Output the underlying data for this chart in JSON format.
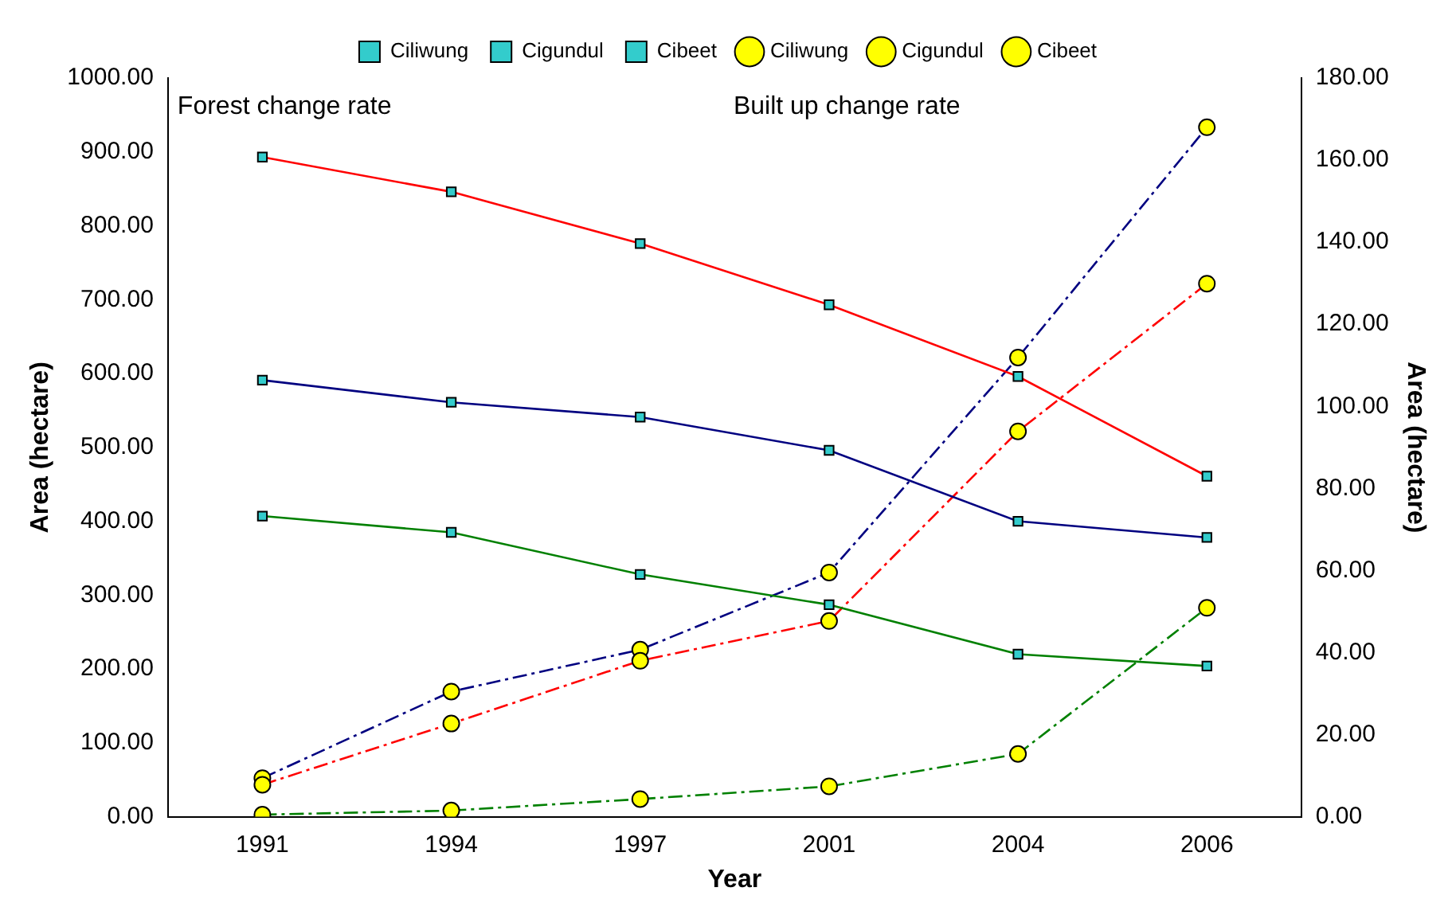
{
  "chart_data": {
    "type": "line",
    "xlabel": "Year",
    "ylabel": "Area (hectare)",
    "y2label": "Area (hectare)",
    "categories": [
      "1991",
      "1994",
      "1997",
      "2001",
      "2004",
      "2006"
    ],
    "series": [
      {
        "name": "Ciliwung",
        "color": "#ff0000",
        "marker": "square",
        "line_style": "solid",
        "values": [
          893,
          846,
          776,
          693,
          596,
          461
        ]
      },
      {
        "name": "Cigundul",
        "color": "#000080",
        "marker": "square",
        "line_style": "solid",
        "values": [
          591,
          561,
          541,
          496,
          400,
          378
        ]
      },
      {
        "name": "Cibeet",
        "color": "#008000",
        "marker": "square",
        "line_style": "solid",
        "values": [
          407,
          385,
          328,
          287,
          220,
          204
        ]
      },
      {
        "name": "Ciliwung",
        "color": "#ff0000",
        "marker": "circle",
        "line_style": "dashed",
        "axis": "y2",
        "values": [
          7.8,
          22.7,
          38,
          47.7,
          93.9,
          129.9
        ]
      },
      {
        "name": "Cigundul",
        "color": "#000080",
        "marker": "circle",
        "line_style": "dashed",
        "axis": "y2",
        "values": [
          9.4,
          30.5,
          40.7,
          59.5,
          111.9,
          168
        ]
      },
      {
        "name": "Cibeet",
        "color": "#008000",
        "marker": "circle",
        "line_style": "dashed",
        "axis": "y2",
        "values": [
          0.5,
          1.5,
          4.3,
          7.4,
          15.3,
          50.9
        ]
      }
    ],
    "ylim": [
      0,
      1000
    ],
    "yticks": [
      {
        "value": 0,
        "label": "0.00"
      },
      {
        "value": 100,
        "label": "100.00"
      },
      {
        "value": 200,
        "label": "200.00"
      },
      {
        "value": 300,
        "label": "300.00"
      },
      {
        "value": 400,
        "label": "400.00"
      },
      {
        "value": 500,
        "label": "500.00"
      },
      {
        "value": 600,
        "label": "600.00"
      },
      {
        "value": 700,
        "label": "700.00"
      },
      {
        "value": 800,
        "label": "800.00"
      },
      {
        "value": 900,
        "label": "900.00"
      },
      {
        "value": 1000,
        "label": "1000.00"
      }
    ],
    "y2lim": [
      0,
      180
    ],
    "y2ticks": [
      {
        "value": 0,
        "label": "0.00"
      },
      {
        "value": 20,
        "label": "20.00"
      },
      {
        "value": 40,
        "label": "40.00"
      },
      {
        "value": 60,
        "label": "60.00"
      },
      {
        "value": 80,
        "label": "80.00"
      },
      {
        "value": 100,
        "label": "100.00"
      },
      {
        "value": 120,
        "label": "120.00"
      },
      {
        "value": 140,
        "label": "140.00"
      },
      {
        "value": 160,
        "label": "160.00"
      },
      {
        "value": 180,
        "label": "180.00"
      }
    ],
    "annotations": [
      "Forest change rate",
      "Built up change rate"
    ],
    "grid": false,
    "legend": "top"
  }
}
